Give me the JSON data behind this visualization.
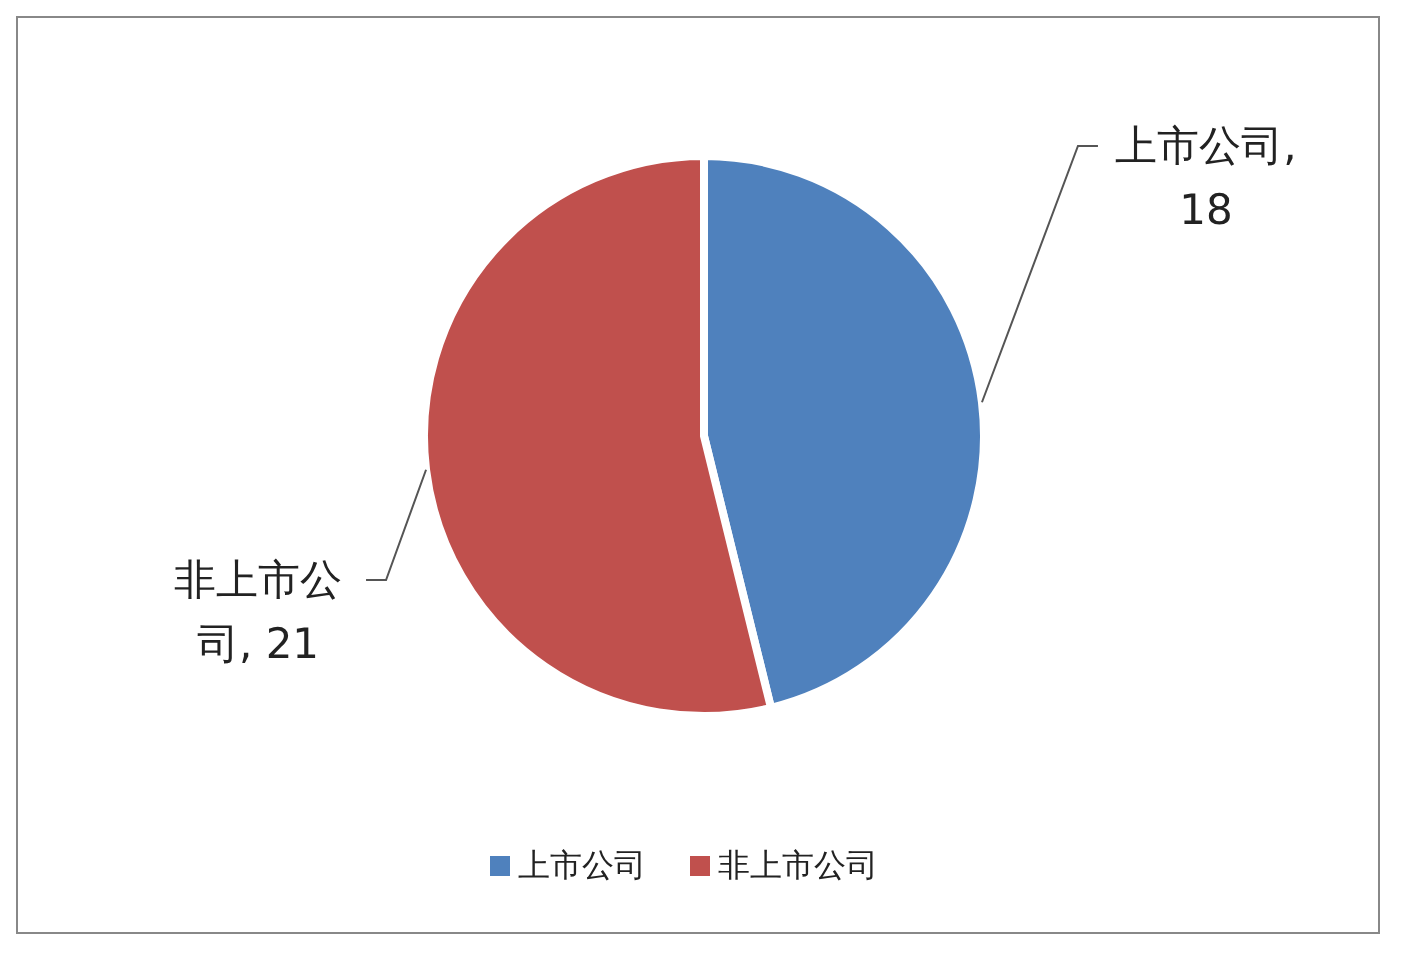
{
  "chart_data": {
    "type": "pie",
    "categories": [
      "上市公司",
      "非上市公司"
    ],
    "values": [
      18,
      21
    ],
    "colors": [
      "#4f81bd",
      "#c0504d"
    ],
    "value_labels": [
      "上市公司, 18",
      "非上市公司, 21"
    ],
    "data_labels": true,
    "legend": "bottom"
  }
}
